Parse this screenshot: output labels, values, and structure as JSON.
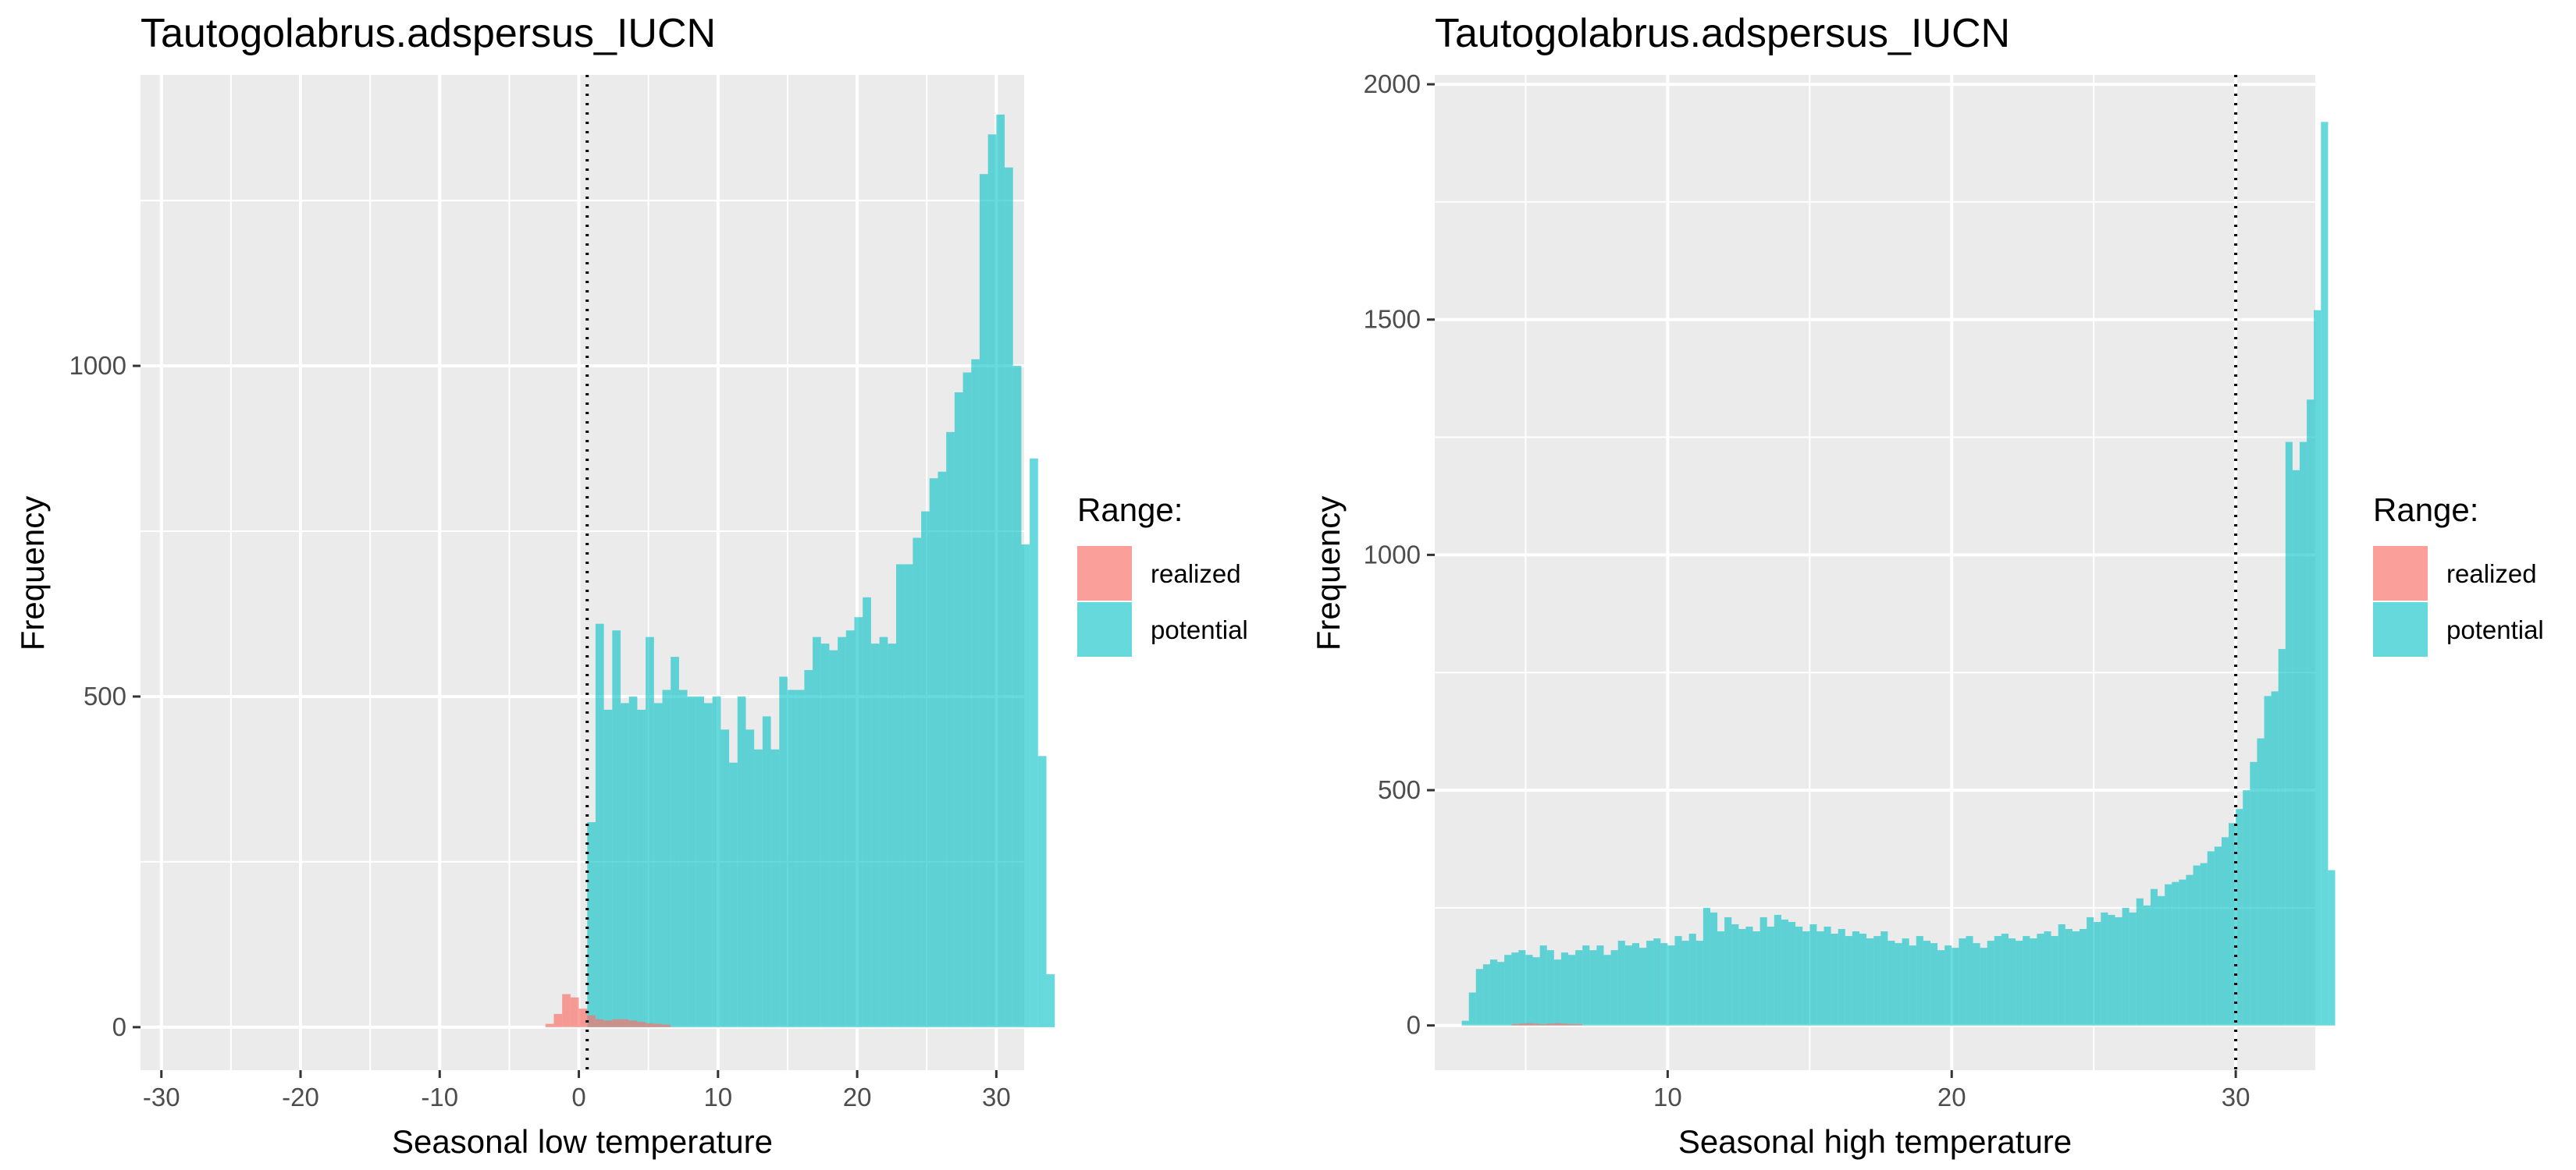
{
  "chart_data": [
    {
      "type": "histogram",
      "title": "Tautogolabrus.adspersus_IUCN",
      "xlabel": "Seasonal low temperature",
      "ylabel": "Frequency",
      "xlim": [
        -31.5,
        32
      ],
      "ylim": [
        -65,
        1440
      ],
      "xticks": [
        -30,
        -20,
        -10,
        0,
        10,
        20,
        30
      ],
      "yticks": [
        0,
        500,
        1000
      ],
      "bin_width": 0.6,
      "vline": 0.6,
      "grid": true,
      "legend": {
        "title": "Range:",
        "position": "right",
        "entries": [
          "realized",
          "potential"
        ]
      },
      "series": [
        {
          "name": "realized",
          "color": "#F8766D",
          "x_start": -2.4,
          "values": [
            5,
            20,
            50,
            45,
            28,
            18,
            12,
            10,
            12,
            12,
            10,
            8,
            6,
            5,
            4
          ]
        },
        {
          "name": "potential",
          "color": "#00BFC4",
          "x_start": 0.6,
          "values": [
            310,
            610,
            480,
            600,
            490,
            500,
            480,
            590,
            490,
            510,
            560,
            510,
            500,
            500,
            490,
            500,
            450,
            400,
            500,
            450,
            420,
            470,
            420,
            530,
            510,
            510,
            540,
            590,
            580,
            570,
            590,
            600,
            620,
            650,
            580,
            590,
            580,
            700,
            700,
            740,
            780,
            830,
            840,
            900,
            960,
            990,
            1010,
            1290,
            1350,
            1380,
            1300,
            1000,
            730,
            860,
            410,
            80
          ]
        }
      ]
    },
    {
      "type": "histogram",
      "title": "Tautogolabrus.adspersus_IUCN",
      "xlabel": "Seasonal high temperature",
      "ylabel": "Frequency",
      "xlim": [
        1.8,
        32.8
      ],
      "ylim": [
        -95,
        2020
      ],
      "xticks": [
        10,
        20,
        30
      ],
      "yticks": [
        0,
        500,
        1000,
        1500,
        2000
      ],
      "bin_width": 0.25,
      "vline": 30,
      "grid": true,
      "legend": {
        "title": "Range:",
        "position": "right",
        "entries": [
          "realized",
          "potential"
        ]
      },
      "series": [
        {
          "name": "realized",
          "color": "#F8766D",
          "x_start": 4.5,
          "values": [
            3,
            4,
            5,
            4,
            3,
            4,
            5,
            4,
            3,
            3
          ]
        },
        {
          "name": "potential",
          "color": "#00BFC4",
          "x_start": 2.75,
          "values": [
            10,
            70,
            120,
            130,
            140,
            135,
            150,
            155,
            160,
            150,
            145,
            170,
            160,
            140,
            155,
            150,
            160,
            170,
            160,
            170,
            150,
            160,
            180,
            170,
            175,
            165,
            180,
            185,
            175,
            170,
            190,
            180,
            195,
            180,
            250,
            240,
            200,
            230,
            215,
            205,
            210,
            200,
            230,
            210,
            235,
            225,
            220,
            210,
            200,
            215,
            200,
            210,
            195,
            205,
            190,
            200,
            195,
            185,
            190,
            200,
            180,
            175,
            185,
            170,
            190,
            180,
            175,
            160,
            170,
            165,
            185,
            190,
            175,
            165,
            180,
            190,
            195,
            185,
            180,
            190,
            185,
            195,
            200,
            190,
            215,
            205,
            200,
            205,
            230,
            220,
            240,
            235,
            230,
            250,
            240,
            270,
            255,
            290,
            275,
            300,
            305,
            310,
            320,
            340,
            345,
            370,
            380,
            400,
            430,
            460,
            500,
            560,
            610,
            700,
            710,
            800,
            1240,
            1180,
            1240,
            1330,
            1520,
            1920,
            330
          ]
        }
      ]
    }
  ]
}
